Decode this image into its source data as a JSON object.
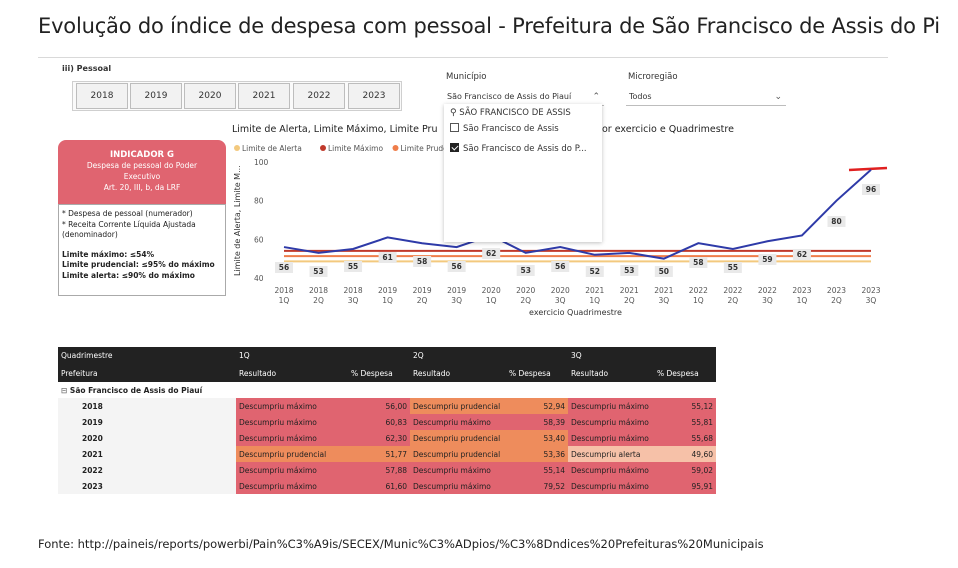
{
  "header": {
    "title": "Evolução do índice de despesa com pessoal - Prefeitura de São Francisco de Assis do Pi",
    "section": "iii) Pessoal"
  },
  "year_filter": {
    "years": [
      "2018",
      "2019",
      "2020",
      "2021",
      "2022",
      "2023"
    ]
  },
  "municipio_slicer": {
    "label": "Município",
    "selected": "São Francisco de Assis do Piauí",
    "search_text": "SÃO FRANCISCO DE ASSIS",
    "options": [
      {
        "label": "São Francisco de Assis",
        "checked": false
      },
      {
        "label": "São Francisco de Assis do P...",
        "checked": true
      }
    ]
  },
  "microregiao_slicer": {
    "label": "Microregião",
    "selected": "Todos"
  },
  "indicator": {
    "title": "INDICADOR G",
    "line1": "Despesa de pessoal do Poder",
    "line2": "Executivo",
    "line3": "Art. 20, III, b, da LRF",
    "note1": "* Despesa de pessoal (numerador)",
    "note2": "* Receita Corrente Líquida Ajustada",
    "note3": "(denominador)",
    "max": "Limite máximo: ≤54%",
    "prudencial": "Limite prudencial: ≤95% do máximo",
    "alerta": "Limite alerta: ≤90% do máximo"
  },
  "chart_data": {
    "type": "line",
    "title_visible_start": "Limite de Alerta, Limite Máximo, Limite Pru",
    "title_visible_end": "or exercicio e Quadrimestre",
    "legend": [
      "Limite de Alerta",
      "Limite Máximo",
      "Limite Prudencia"
    ],
    "ylabel": "Limite de Alerta, Limite M...",
    "xlabel": "exercicio Quadrimestre",
    "ylim": [
      40,
      100
    ],
    "yticks": [
      40,
      60,
      80,
      100
    ],
    "x_years": [
      "2018",
      "2018",
      "2018",
      "2019",
      "2019",
      "2019",
      "2020",
      "2020",
      "2020",
      "2021",
      "2021",
      "2021",
      "2022",
      "2022",
      "2022",
      "2023",
      "2023",
      "2023"
    ],
    "x_quads": [
      "1Q",
      "2Q",
      "3Q",
      "1Q",
      "2Q",
      "3Q",
      "1Q",
      "2Q",
      "3Q",
      "1Q",
      "2Q",
      "3Q",
      "1Q",
      "2Q",
      "3Q",
      "1Q",
      "2Q",
      "3Q"
    ],
    "series": [
      {
        "values": [
          56,
          53,
          55,
          61,
          58,
          56,
          62,
          53,
          56,
          52,
          53,
          50,
          58,
          55,
          59,
          62,
          80,
          96
        ],
        "color": "#2e3aa8"
      }
    ],
    "labels": [
      "56",
      "53",
      "55",
      "61",
      "58",
      "56",
      "62",
      "53",
      "56",
      "52",
      "53",
      "50",
      "58",
      "55",
      "59",
      "62",
      "80",
      "96"
    ],
    "limits": {
      "maximo": 54,
      "prudencial": 51.3,
      "alerta": 48.6
    },
    "limit_colors": {
      "maximo": "#c0392b",
      "prudencial": "#ef7d4a",
      "alerta": "#f3c97e"
    },
    "grid": false,
    "legend_position": "top-left"
  },
  "table": {
    "header_quad": "Quadrimestre",
    "header_pref": "Prefeitura",
    "quads": [
      "1Q",
      "2Q",
      "3Q"
    ],
    "col_resultado": "Resultado",
    "col_despesa": "% Despesa",
    "group": "São Francisco de Assis do Piauí",
    "group_expander": "⊟",
    "rows": [
      {
        "year": "2018",
        "r1": "Descumpriu máximo",
        "v1": "56,00",
        "r2": "Descumpriu prudencial",
        "v2": "52,94",
        "r3": "Descumpriu máximo",
        "v3": "55,12",
        "c1": "max",
        "c2": "pru",
        "c3": "max"
      },
      {
        "year": "2019",
        "r1": "Descumpriu máximo",
        "v1": "60,83",
        "r2": "Descumpriu máximo",
        "v2": "58,39",
        "r3": "Descumpriu máximo",
        "v3": "55,81",
        "c1": "max",
        "c2": "max",
        "c3": "max"
      },
      {
        "year": "2020",
        "r1": "Descumpriu máximo",
        "v1": "62,30",
        "r2": "Descumpriu prudencial",
        "v2": "53,40",
        "r3": "Descumpriu máximo",
        "v3": "55,68",
        "c1": "max",
        "c2": "pru",
        "c3": "max"
      },
      {
        "year": "2021",
        "r1": "Descumpriu prudencial",
        "v1": "51,77",
        "r2": "Descumpriu prudencial",
        "v2": "53,36",
        "r3": "Descumpriu alerta",
        "v3": "49,60",
        "c1": "pru",
        "c2": "pru",
        "c3": "ale"
      },
      {
        "year": "2022",
        "r1": "Descumpriu máximo",
        "v1": "57,88",
        "r2": "Descumpriu máximo",
        "v2": "55,14",
        "r3": "Descumpriu máximo",
        "v3": "59,02",
        "c1": "max",
        "c2": "max",
        "c3": "max"
      },
      {
        "year": "2023",
        "r1": "Descumpriu máximo",
        "v1": "61,60",
        "r2": "Descumpriu máximo",
        "v2": "79,52",
        "r3": "Descumpriu máximo",
        "v3": "95,91",
        "c1": "max",
        "c2": "max",
        "c3": "max"
      }
    ]
  },
  "footer": {
    "source": "Fonte: http://paineis/reports/powerbi/Pain%C3%A9is/SECEX/Munic%C3%ADpios/%C3%8Dndices%20Prefeituras%20Municipais"
  }
}
